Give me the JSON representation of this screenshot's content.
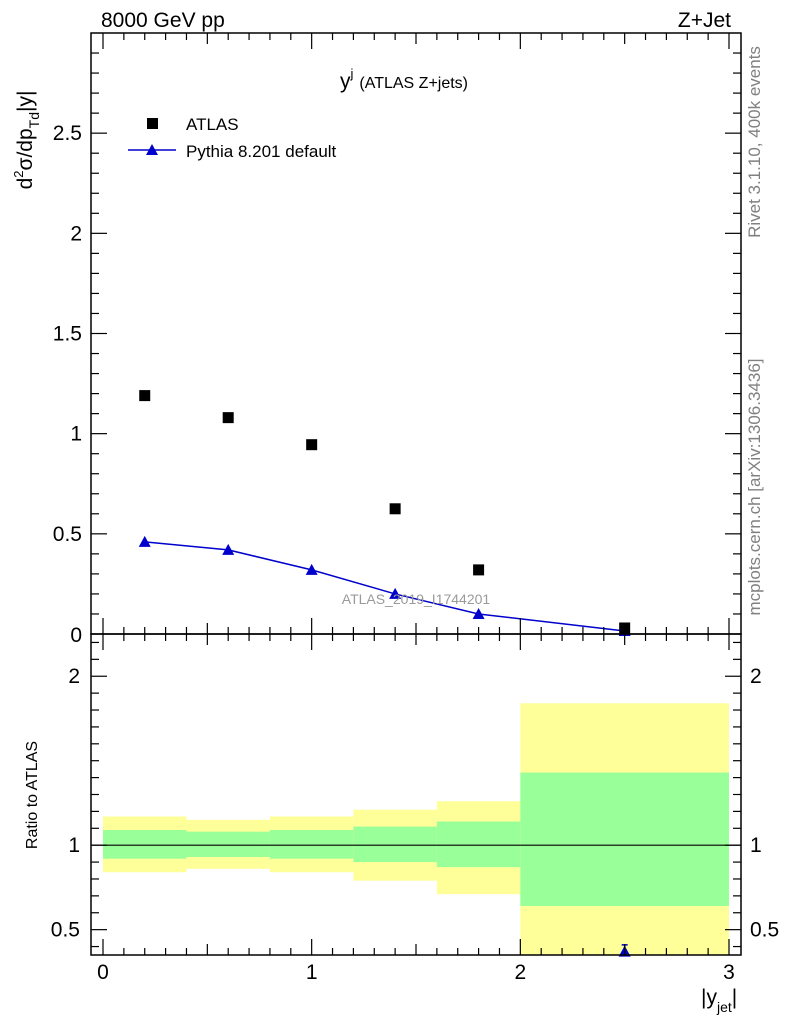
{
  "header": {
    "energy_label": "8000 GeV pp",
    "process_label": "Z+Jet"
  },
  "side_labels": {
    "rivet": "Rivet 3.1.10,  400k events",
    "mcplots": "mcplots.cern.ch [arXiv:1306.3436]"
  },
  "chart_data": [
    {
      "type": "scatter",
      "panel": "main",
      "title_main": "y",
      "title_sup": "j",
      "title_rest": "(ATLAS Z+jets)",
      "watermark": "ATLAS_2019_I1744201",
      "ylabel": "d²σ/dp_Td|y|",
      "ylabel_parts": {
        "d": "d",
        "two": "2",
        "mid": "σ/dp",
        "sub": "Td",
        "tail": "|y|"
      },
      "xlim": [
        0,
        3
      ],
      "ylim": [
        0,
        3.0
      ],
      "yticks": [
        0.5,
        1,
        1.5,
        2,
        2.5
      ],
      "ytick_labels": [
        "0.5",
        "1",
        "1.5",
        "2",
        "2.5"
      ],
      "ybottom_label": "0",
      "legend_position": "top-left",
      "series": [
        {
          "name": "ATLAS",
          "marker": "square",
          "color": "#000000",
          "x": [
            0.2,
            0.6,
            1.0,
            1.4,
            1.8,
            2.5
          ],
          "y": [
            1.19,
            1.08,
            0.945,
            0.625,
            0.32,
            0.03
          ]
        },
        {
          "name": "Pythia 8.201 default",
          "marker": "triangle",
          "line": true,
          "color": "#0000cc",
          "x": [
            0.2,
            0.6,
            1.0,
            1.4,
            1.8,
            2.5
          ],
          "y": [
            0.46,
            0.42,
            0.32,
            0.2,
            0.1,
            0.015
          ]
        }
      ]
    },
    {
      "type": "area",
      "panel": "ratio",
      "ylabel": "Ratio to ATLAS",
      "xlabel": "|y_jet|",
      "xlabel_parts": {
        "open": "|y",
        "sub": "jet",
        "close": "|"
      },
      "xlim": [
        0,
        3
      ],
      "ylim": [
        0.35,
        2.25
      ],
      "xticks": [
        0,
        1,
        2,
        3
      ],
      "xtick_labels": [
        "0",
        "1",
        "2",
        "3"
      ],
      "yticks": [
        0.5,
        1,
        2
      ],
      "ytick_labels": [
        "0.5",
        "1",
        "2"
      ],
      "bins": [
        {
          "lo": 0.0,
          "hi": 0.4,
          "stat": [
            0.92,
            1.09
          ],
          "total": [
            0.84,
            1.17
          ]
        },
        {
          "lo": 0.4,
          "hi": 0.8,
          "stat": [
            0.93,
            1.08
          ],
          "total": [
            0.86,
            1.15
          ]
        },
        {
          "lo": 0.8,
          "hi": 1.2,
          "stat": [
            0.92,
            1.09
          ],
          "total": [
            0.84,
            1.17
          ]
        },
        {
          "lo": 1.2,
          "hi": 1.6,
          "stat": [
            0.9,
            1.11
          ],
          "total": [
            0.79,
            1.21
          ]
        },
        {
          "lo": 1.6,
          "hi": 2.0,
          "stat": [
            0.87,
            1.14
          ],
          "total": [
            0.71,
            1.26
          ]
        },
        {
          "lo": 2.0,
          "hi": 3.0,
          "stat": [
            0.64,
            1.43
          ],
          "total": [
            0.35,
            1.84
          ]
        }
      ],
      "reference": 1,
      "mc_points": [
        {
          "x": 2.5,
          "y": 0.37,
          "err": [
            0.33,
            0.41
          ]
        }
      ],
      "colors": {
        "stat": "#99ff99",
        "total": "#ffff99",
        "mc": "#0000cc"
      }
    }
  ]
}
